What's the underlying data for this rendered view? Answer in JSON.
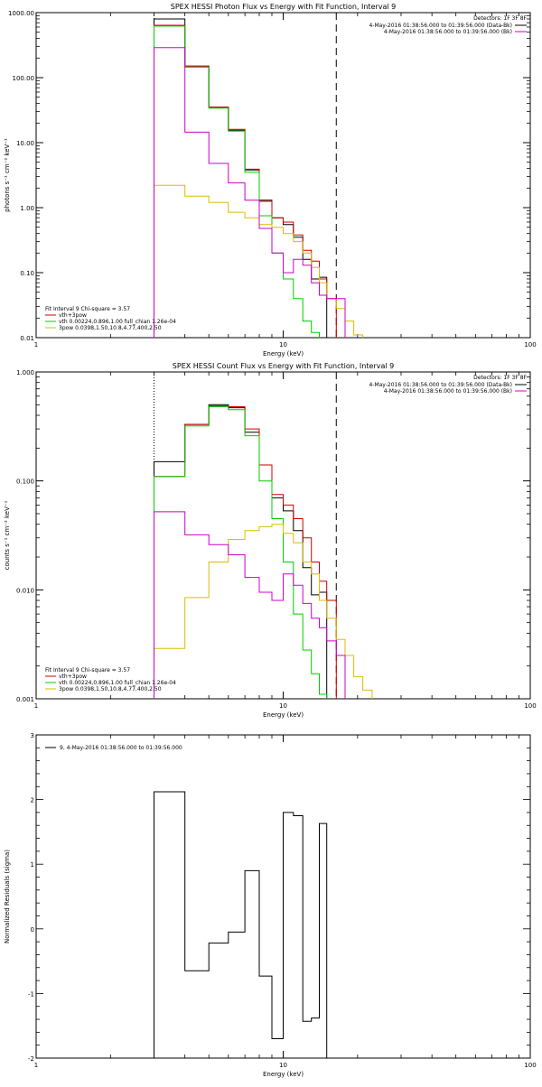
{
  "chart_data": [
    {
      "type": "line",
      "title": "SPEX HESSI Photon Flux vs Energy with Fit Function, Interval 9",
      "xlabel": "Energy (keV)",
      "ylabel": "photons s⁻¹ cm⁻² keV⁻¹",
      "xscale": "log",
      "yscale": "log",
      "xlim": [
        1,
        100
      ],
      "ylim": [
        0.01,
        1000
      ],
      "x_ticks": [
        {
          "v": 1,
          "label": "1"
        },
        {
          "v": 10,
          "label": "10"
        },
        {
          "v": 100,
          "label": "100"
        }
      ],
      "y_ticks": [
        {
          "v": 0.01,
          "label": "0.01"
        },
        {
          "v": 0.1,
          "label": "0.10"
        },
        {
          "v": 1,
          "label": "1.00"
        },
        {
          "v": 10,
          "label": "10.00"
        },
        {
          "v": 100,
          "label": "100.00"
        },
        {
          "v": 1000,
          "label": "1000.00"
        }
      ],
      "detectors": "Detectors: 1F 3F 8F",
      "legend_right": [
        {
          "label": "4-May-2016 01:38:56.000 to 01:39:56.000 (Data-Bk)",
          "color": "#000000"
        },
        {
          "label": "4-May-2016 01:38:56.000 to 01:39:56.000 (Bk)",
          "color": "#cc00cc"
        }
      ],
      "legend_left_header": "Fit Interval 9   Chi-square = 3.57",
      "legend_left": [
        {
          "label": "vth+3pow",
          "color": "#cc0000"
        },
        {
          "label": "vth 0.00224,0.896,1.00  full_chian 1.26e-04",
          "color": "#00cc00"
        },
        {
          "label": "3pow 0.0398,1.50,10.8,4.77,400,2.50",
          "color": "#ddbb00"
        }
      ],
      "dotted_x": 3,
      "dashed_x": 16.4,
      "bin_edges": [
        3,
        4,
        5,
        6,
        7,
        8,
        9,
        10,
        11,
        12,
        13,
        14,
        15,
        16.4,
        17.8,
        19.3,
        21,
        22.9,
        25
      ],
      "series": [
        {
          "name": "Data-Bk",
          "color": "#000000",
          "values": [
            800,
            150,
            35,
            15.5,
            3.8,
            1.3,
            0.7,
            0.55,
            0.35,
            0.16,
            0.08,
            0.085,
            null,
            null,
            null,
            null,
            null,
            null
          ]
        },
        {
          "name": "vth+3pow",
          "color": "#cc0000",
          "values": [
            640,
            150,
            35,
            16,
            3.9,
            1.25,
            0.7,
            0.6,
            0.38,
            0.22,
            0.15,
            0.08,
            0.04,
            null,
            null,
            null,
            null,
            null
          ]
        },
        {
          "name": "vth",
          "color": "#00cc00",
          "values": [
            620,
            145,
            34,
            15,
            3.5,
            0.75,
            0.2,
            0.08,
            0.04,
            0.018,
            0.012,
            null,
            null,
            null,
            null,
            null,
            null,
            null
          ]
        },
        {
          "name": "3pow",
          "color": "#ddbb00",
          "values": [
            2.2,
            1.5,
            1.2,
            0.85,
            0.7,
            0.55,
            0.5,
            0.4,
            0.3,
            0.2,
            0.12,
            0.07,
            0.04,
            0.028,
            0.018,
            0.011,
            null,
            null
          ]
        },
        {
          "name": "Bk",
          "color": "#cc00cc",
          "values": [
            290,
            14.5,
            4.8,
            2.4,
            1.3,
            0.48,
            0.2,
            0.1,
            0.16,
            0.13,
            0.07,
            0.045,
            0.04,
            0.04,
            null,
            null,
            null,
            null
          ]
        }
      ]
    },
    {
      "type": "line",
      "title": "SPEX HESSI Count Flux vs Energy with Fit Function, Interval 9",
      "xlabel": "Energy (keV)",
      "ylabel": "counts s⁻¹ cm⁻² keV⁻¹",
      "xscale": "log",
      "yscale": "log",
      "xlim": [
        1,
        100
      ],
      "ylim": [
        0.001,
        1
      ],
      "x_ticks": [
        {
          "v": 1,
          "label": "1"
        },
        {
          "v": 10,
          "label": "10"
        },
        {
          "v": 100,
          "label": "100"
        }
      ],
      "y_ticks": [
        {
          "v": 0.001,
          "label": "0.001"
        },
        {
          "v": 0.01,
          "label": "0.010"
        },
        {
          "v": 0.1,
          "label": "0.100"
        },
        {
          "v": 1,
          "label": "1.000"
        }
      ],
      "detectors": "Detectors: 1F 3F 8F",
      "legend_right": [
        {
          "label": "4-May-2016 01:38:56.000 to 01:39:56.000 (Data-Bk)",
          "color": "#000000"
        },
        {
          "label": "4-May-2016 01:38:56.000 to 01:39:56.000 (Bk)",
          "color": "#cc00cc"
        }
      ],
      "legend_left_header": "Fit Interval 9   Chi-square = 3.57",
      "legend_left": [
        {
          "label": "vth+3pow",
          "color": "#cc0000"
        },
        {
          "label": "vth 0.00224,0.896,1.00  full_chian 1.26e-04",
          "color": "#00cc00"
        },
        {
          "label": "3pow 0.0398,1.50,10.8,4.77,400,2.50",
          "color": "#ddbb00"
        }
      ],
      "dotted_x": 3,
      "dashed_x": 16.4,
      "bin_edges": [
        3,
        4,
        5,
        6,
        7,
        8,
        9,
        10,
        11,
        12,
        13,
        14,
        15,
        16.4,
        17.8,
        19.3,
        21,
        22.9,
        25
      ],
      "series": [
        {
          "name": "Data-Bk",
          "color": "#000000",
          "values": [
            0.15,
            0.33,
            0.5,
            0.47,
            0.28,
            0.14,
            0.07,
            0.053,
            0.035,
            0.016,
            0.009,
            0.0095,
            null,
            null,
            null,
            null,
            null,
            null
          ]
        },
        {
          "name": "vth+3pow",
          "color": "#cc0000",
          "values": [
            0.11,
            0.33,
            0.49,
            0.48,
            0.3,
            0.14,
            0.075,
            0.06,
            0.045,
            0.03,
            0.018,
            0.012,
            0.008,
            null,
            null,
            null,
            null,
            null
          ]
        },
        {
          "name": "vth",
          "color": "#00cc00",
          "values": [
            0.11,
            0.32,
            0.48,
            0.45,
            0.26,
            0.1,
            0.045,
            0.018,
            0.006,
            0.0028,
            0.0017,
            0.0011,
            null,
            null,
            null,
            null,
            null,
            null
          ]
        },
        {
          "name": "3pow",
          "color": "#ddbb00",
          "values": [
            0.0029,
            0.0085,
            0.018,
            0.029,
            0.035,
            0.038,
            0.04,
            0.033,
            0.027,
            0.018,
            0.014,
            0.008,
            0.0055,
            0.0035,
            0.0025,
            0.0016,
            0.0012,
            null
          ]
        },
        {
          "name": "Bk",
          "color": "#cc00cc",
          "values": [
            0.052,
            0.032,
            0.026,
            0.021,
            0.013,
            0.0095,
            0.008,
            0.014,
            0.011,
            0.0075,
            0.0055,
            0.0045,
            0.0034,
            0.0025,
            null,
            null,
            null,
            null
          ]
        }
      ]
    },
    {
      "type": "line",
      "title": "",
      "xlabel": "Energy (keV)",
      "ylabel": "Normalized Residuals (sigma)",
      "xscale": "log",
      "yscale": "linear",
      "xlim": [
        1,
        100
      ],
      "ylim": [
        -2,
        3
      ],
      "x_ticks": [
        {
          "v": 1,
          "label": "1"
        },
        {
          "v": 10,
          "label": "10"
        },
        {
          "v": 100,
          "label": "100"
        }
      ],
      "y_ticks": [
        {
          "v": -2,
          "label": "-2"
        },
        {
          "v": -1,
          "label": "-1"
        },
        {
          "v": 0,
          "label": "0"
        },
        {
          "v": 1,
          "label": "1"
        },
        {
          "v": 2,
          "label": "2"
        },
        {
          "v": 3,
          "label": "3"
        }
      ],
      "legend_left_top": "9,  4-May-2016 01:38:56.000 to 01:39:56.000",
      "bin_edges": [
        3,
        4,
        5,
        6,
        7,
        8,
        9,
        10,
        11,
        12,
        13,
        14,
        15,
        16.4
      ],
      "series": [
        {
          "name": "residuals",
          "color": "#000000",
          "values": [
            2.12,
            -0.65,
            -0.22,
            -0.05,
            0.9,
            -0.73,
            -1.7,
            1.8,
            1.75,
            -1.43,
            -1.38,
            1.63,
            null
          ]
        }
      ]
    }
  ]
}
